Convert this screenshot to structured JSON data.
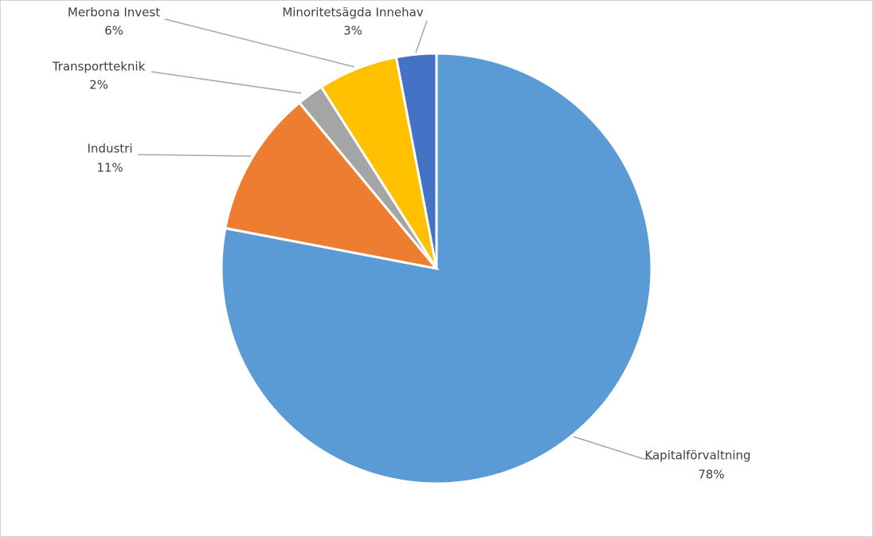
{
  "chart_data": {
    "type": "pie",
    "categories": [
      "Kapitalförvaltning",
      "Industri",
      "Transportteknik",
      "Merbona Invest",
      "Minoritetsägda Innehav"
    ],
    "values": [
      78,
      11,
      2,
      6,
      3
    ],
    "value_labels": [
      "78%",
      "11%",
      "2%",
      "6%",
      "3%"
    ],
    "colors": [
      "#5b9bd5",
      "#ed7d31",
      "#a5a5a5",
      "#ffc000",
      "#4472c4"
    ]
  }
}
